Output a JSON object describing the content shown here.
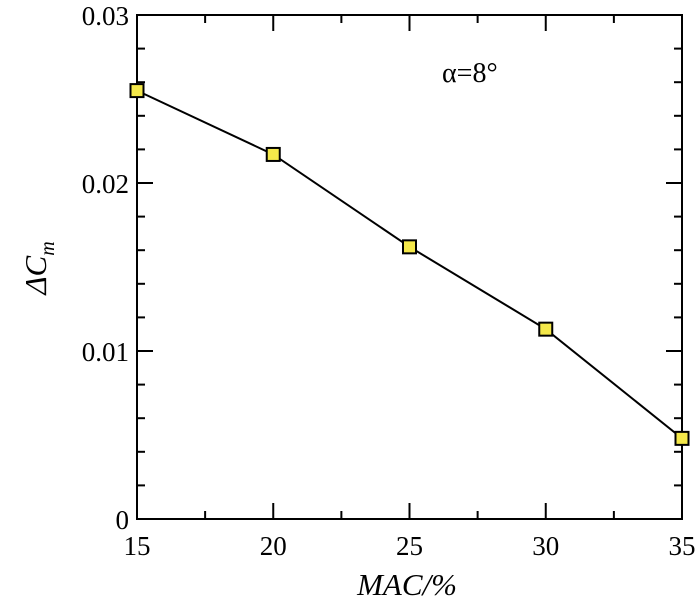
{
  "chart_data": {
    "type": "line",
    "title": "",
    "xlabel": "MAC/%",
    "ylabel": "ΔC",
    "ylabel_subscript": "m",
    "xlim": [
      15,
      35
    ],
    "ylim": [
      0,
      0.03
    ],
    "x_ticks": [
      15,
      20,
      25,
      30,
      35
    ],
    "x_tick_labels": [
      "15",
      "20",
      "25",
      "30",
      "35"
    ],
    "y_ticks": [
      0,
      0.01,
      0.02,
      0.03
    ],
    "y_tick_labels": [
      "0",
      "0.01",
      "0.02",
      "0.03"
    ],
    "grid": false,
    "annotation": "α=8°",
    "series": [
      {
        "x": [
          15,
          20,
          25,
          30,
          35
        ],
        "values": [
          0.0255,
          0.0217,
          0.0162,
          0.0113,
          0.0048
        ],
        "line_color": "#000000",
        "marker": "square",
        "marker_fill": "#f4e84a",
        "marker_edge": "#000000"
      }
    ]
  }
}
